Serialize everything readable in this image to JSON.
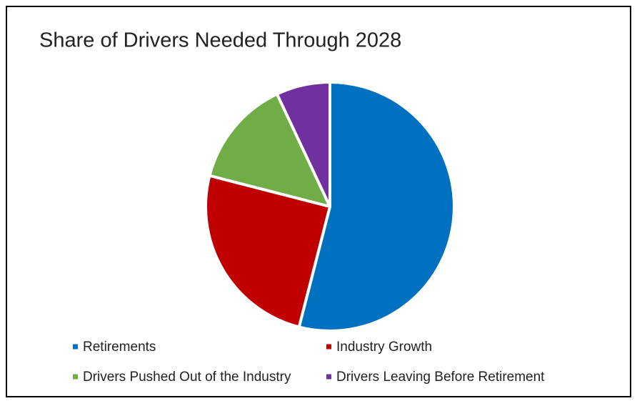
{
  "chart_data": {
    "type": "pie",
    "title": "Share of Drivers Needed Through 2028",
    "categories": [
      "Retirements",
      "Industry Growth",
      "Drivers Pushed Out of the Industry",
      "Drivers Leaving Before Retirement"
    ],
    "values": [
      54,
      25,
      14,
      7
    ],
    "colors": [
      "#0070c0",
      "#c00000",
      "#70ad47",
      "#7030a0"
    ],
    "legend": "bottom"
  }
}
